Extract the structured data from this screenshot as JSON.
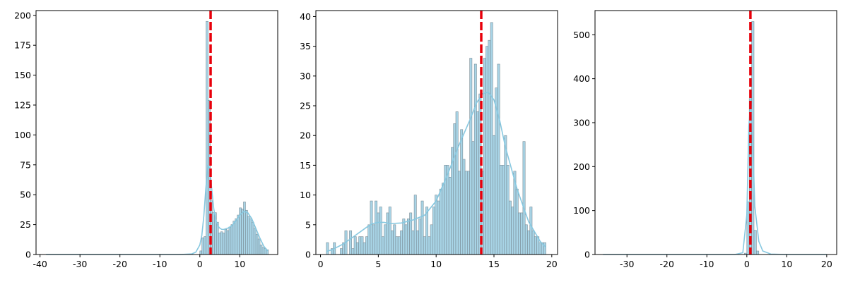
{
  "colors": {
    "bar_fill": "#a8d4e6",
    "bar_edge": "#7a8c96",
    "kde": "#87c8e0",
    "mean_line": "#e8000b"
  },
  "chart_data": [
    {
      "type": "bar",
      "title": "",
      "xlabel": "",
      "ylabel": "",
      "xlim": [
        -41,
        19.5
      ],
      "ylim": [
        0,
        204
      ],
      "xticks": [
        -40,
        -30,
        -20,
        -10,
        0,
        10
      ],
      "yticks": [
        0,
        25,
        50,
        75,
        100,
        125,
        150,
        175,
        200
      ],
      "mean_line": 2.7,
      "histogram": {
        "bin_width": 0.52,
        "bins": [
          {
            "x": 0.0,
            "count": 3
          },
          {
            "x": 0.52,
            "count": 14
          },
          {
            "x": 1.04,
            "count": 15
          },
          {
            "x": 1.56,
            "count": 195
          },
          {
            "x": 2.08,
            "count": 129
          },
          {
            "x": 2.6,
            "count": 45
          },
          {
            "x": 3.12,
            "count": 35
          },
          {
            "x": 3.64,
            "count": 35
          },
          {
            "x": 4.16,
            "count": 27
          },
          {
            "x": 4.68,
            "count": 18
          },
          {
            "x": 5.2,
            "count": 19
          },
          {
            "x": 5.72,
            "count": 18
          },
          {
            "x": 6.24,
            "count": 21
          },
          {
            "x": 6.76,
            "count": 20
          },
          {
            "x": 7.28,
            "count": 23
          },
          {
            "x": 7.8,
            "count": 25
          },
          {
            "x": 8.32,
            "count": 28
          },
          {
            "x": 8.84,
            "count": 30
          },
          {
            "x": 9.36,
            "count": 33
          },
          {
            "x": 9.88,
            "count": 39
          },
          {
            "x": 10.4,
            "count": 38
          },
          {
            "x": 10.92,
            "count": 44
          },
          {
            "x": 11.44,
            "count": 37
          },
          {
            "x": 11.96,
            "count": 32
          },
          {
            "x": 12.48,
            "count": 30
          },
          {
            "x": 13.0,
            "count": 27
          },
          {
            "x": 13.52,
            "count": 22
          },
          {
            "x": 14.04,
            "count": 17
          },
          {
            "x": 14.56,
            "count": 13
          },
          {
            "x": 15.08,
            "count": 8
          },
          {
            "x": 15.6,
            "count": 6
          },
          {
            "x": 16.12,
            "count": 5
          },
          {
            "x": 16.64,
            "count": 4
          }
        ]
      },
      "kde": {
        "x": [
          -38.5,
          -30,
          -20,
          -10,
          -5,
          -2,
          -1,
          0,
          0.5,
          1,
          1.5,
          2,
          2.5,
          3,
          3.5,
          4,
          4.5,
          5,
          5.5,
          6,
          7,
          8,
          9,
          10,
          11,
          12,
          13,
          14,
          15,
          16,
          17
        ],
        "y": [
          0,
          0,
          0,
          0,
          0,
          0.5,
          2,
          8,
          16,
          32,
          55,
          74,
          72,
          54,
          38,
          29,
          24,
          22,
          21,
          21,
          22,
          24,
          28,
          33,
          36,
          35,
          30,
          22,
          14,
          7,
          3
        ]
      }
    },
    {
      "type": "bar",
      "title": "",
      "xlabel": "",
      "ylabel": "",
      "xlim": [
        -0.4,
        20.5
      ],
      "ylim": [
        0,
        41
      ],
      "xticks": [
        0,
        5,
        10,
        15,
        20
      ],
      "yticks": [
        0,
        5,
        10,
        15,
        20,
        25,
        30,
        35,
        40
      ],
      "mean_line": 13.9,
      "histogram": {
        "bin_width": 0.2,
        "bins": [
          {
            "x": 0.5,
            "count": 2
          },
          {
            "x": 0.7,
            "count": 0
          },
          {
            "x": 0.9,
            "count": 1
          },
          {
            "x": 1.1,
            "count": 2
          },
          {
            "x": 1.3,
            "count": 0
          },
          {
            "x": 1.5,
            "count": 0
          },
          {
            "x": 1.7,
            "count": 1
          },
          {
            "x": 1.9,
            "count": 2
          },
          {
            "x": 2.1,
            "count": 4
          },
          {
            "x": 2.3,
            "count": 0
          },
          {
            "x": 2.5,
            "count": 4
          },
          {
            "x": 2.7,
            "count": 1
          },
          {
            "x": 2.9,
            "count": 3
          },
          {
            "x": 3.1,
            "count": 2
          },
          {
            "x": 3.3,
            "count": 3
          },
          {
            "x": 3.5,
            "count": 3
          },
          {
            "x": 3.7,
            "count": 2
          },
          {
            "x": 3.9,
            "count": 3
          },
          {
            "x": 4.1,
            "count": 5
          },
          {
            "x": 4.3,
            "count": 9
          },
          {
            "x": 4.5,
            "count": 5
          },
          {
            "x": 4.7,
            "count": 9
          },
          {
            "x": 4.9,
            "count": 7
          },
          {
            "x": 5.1,
            "count": 8
          },
          {
            "x": 5.3,
            "count": 3
          },
          {
            "x": 5.5,
            "count": 5
          },
          {
            "x": 5.7,
            "count": 7
          },
          {
            "x": 5.9,
            "count": 8
          },
          {
            "x": 6.1,
            "count": 4
          },
          {
            "x": 6.3,
            "count": 5
          },
          {
            "x": 6.5,
            "count": 3
          },
          {
            "x": 6.7,
            "count": 3
          },
          {
            "x": 6.9,
            "count": 4
          },
          {
            "x": 7.1,
            "count": 6
          },
          {
            "x": 7.3,
            "count": 5
          },
          {
            "x": 7.5,
            "count": 6
          },
          {
            "x": 7.7,
            "count": 7
          },
          {
            "x": 7.9,
            "count": 4
          },
          {
            "x": 8.1,
            "count": 10
          },
          {
            "x": 8.3,
            "count": 4
          },
          {
            "x": 8.5,
            "count": 6
          },
          {
            "x": 8.7,
            "count": 9
          },
          {
            "x": 8.9,
            "count": 3
          },
          {
            "x": 9.1,
            "count": 8
          },
          {
            "x": 9.3,
            "count": 3
          },
          {
            "x": 9.5,
            "count": 5
          },
          {
            "x": 9.7,
            "count": 8
          },
          {
            "x": 9.9,
            "count": 10
          },
          {
            "x": 10.1,
            "count": 9
          },
          {
            "x": 10.3,
            "count": 11
          },
          {
            "x": 10.5,
            "count": 12
          },
          {
            "x": 10.7,
            "count": 15
          },
          {
            "x": 10.9,
            "count": 15
          },
          {
            "x": 11.1,
            "count": 13
          },
          {
            "x": 11.3,
            "count": 18
          },
          {
            "x": 11.5,
            "count": 22
          },
          {
            "x": 11.7,
            "count": 24
          },
          {
            "x": 11.9,
            "count": 14
          },
          {
            "x": 12.1,
            "count": 21
          },
          {
            "x": 12.3,
            "count": 16
          },
          {
            "x": 12.5,
            "count": 14
          },
          {
            "x": 12.7,
            "count": 14
          },
          {
            "x": 12.9,
            "count": 33
          },
          {
            "x": 13.1,
            "count": 19
          },
          {
            "x": 13.3,
            "count": 32
          },
          {
            "x": 13.5,
            "count": 24
          },
          {
            "x": 13.7,
            "count": 27
          },
          {
            "x": 13.9,
            "count": 14
          },
          {
            "x": 14.1,
            "count": 33
          },
          {
            "x": 14.3,
            "count": 35
          },
          {
            "x": 14.5,
            "count": 36
          },
          {
            "x": 14.7,
            "count": 39
          },
          {
            "x": 14.9,
            "count": 20
          },
          {
            "x": 15.1,
            "count": 28
          },
          {
            "x": 15.3,
            "count": 32
          },
          {
            "x": 15.5,
            "count": 15
          },
          {
            "x": 15.7,
            "count": 15
          },
          {
            "x": 15.9,
            "count": 20
          },
          {
            "x": 16.1,
            "count": 15
          },
          {
            "x": 16.3,
            "count": 9
          },
          {
            "x": 16.5,
            "count": 8
          },
          {
            "x": 16.7,
            "count": 14
          },
          {
            "x": 16.9,
            "count": 11
          },
          {
            "x": 17.1,
            "count": 7
          },
          {
            "x": 17.3,
            "count": 7
          },
          {
            "x": 17.5,
            "count": 19
          },
          {
            "x": 17.7,
            "count": 5
          },
          {
            "x": 17.9,
            "count": 4
          },
          {
            "x": 18.1,
            "count": 8
          },
          {
            "x": 18.3,
            "count": 4
          },
          {
            "x": 18.5,
            "count": 3
          },
          {
            "x": 18.7,
            "count": 3
          },
          {
            "x": 18.9,
            "count": 2
          },
          {
            "x": 19.1,
            "count": 2
          },
          {
            "x": 19.3,
            "count": 2
          }
        ]
      },
      "kde": {
        "x": [
          0.5,
          1,
          2,
          3,
          4,
          4.5,
          5,
          5.5,
          6,
          7,
          8,
          9,
          10,
          11,
          12,
          13,
          13.5,
          14,
          14.5,
          15,
          15.5,
          16,
          17,
          18,
          19,
          19.5
        ],
        "y": [
          0.5,
          0.8,
          1.8,
          3.2,
          4.6,
          5.2,
          5.4,
          5.4,
          5.2,
          5.3,
          5.8,
          6.6,
          9,
          13.5,
          18.5,
          23,
          25.5,
          27,
          27.3,
          26,
          22.5,
          18,
          11,
          5.5,
          2.2,
          1.2
        ]
      }
    },
    {
      "type": "bar",
      "title": "",
      "xlabel": "",
      "ylabel": "",
      "xlim": [
        -38,
        22.5
      ],
      "ylim": [
        0,
        555
      ],
      "xticks": [
        -30,
        -20,
        -10,
        0,
        10,
        20
      ],
      "yticks": [
        0,
        100,
        200,
        300,
        400,
        500
      ],
      "mean_line": 0.9,
      "histogram": {
        "bin_width": 0.6,
        "bins": [
          {
            "x": -0.6,
            "count": 3
          },
          {
            "x": 0.0,
            "count": 120
          },
          {
            "x": 0.6,
            "count": 355
          },
          {
            "x": 1.2,
            "count": 530
          },
          {
            "x": 1.8,
            "count": 55
          },
          {
            "x": 2.4,
            "count": 8
          }
        ]
      },
      "kde": {
        "x": [
          -36,
          -20,
          -10,
          -3,
          -1,
          0,
          0.5,
          1,
          1.5,
          2,
          3,
          4,
          6,
          10,
          20
        ],
        "y": [
          0,
          0,
          0,
          0,
          4,
          90,
          290,
          355,
          250,
          110,
          30,
          8,
          1,
          0,
          0
        ]
      }
    }
  ]
}
